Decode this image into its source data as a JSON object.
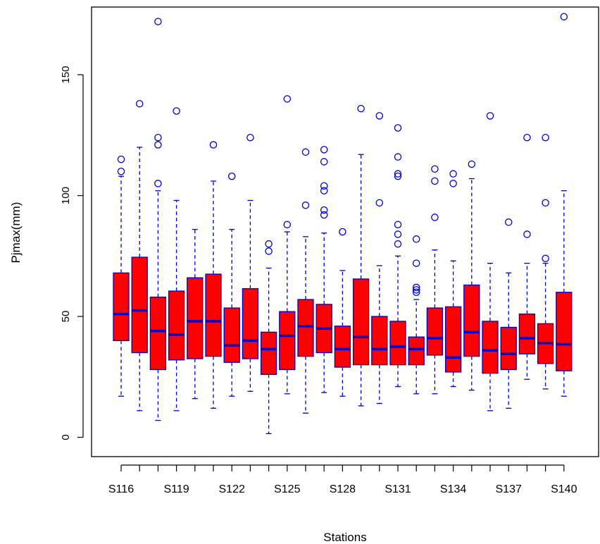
{
  "chart_data": {
    "type": "boxplot",
    "title": "",
    "xlabel": "Stations",
    "ylabel": "Pjmax(mm)",
    "ylim": [
      -8,
      178
    ],
    "yticks": [
      0,
      50,
      100,
      150
    ],
    "xtick_labels_shown": [
      "S116",
      "S119",
      "S122",
      "S125",
      "S128",
      "S131",
      "S134",
      "S137",
      "S140"
    ],
    "colors": {
      "box_fill": "#ff0000",
      "border": "#0000cc",
      "axis": "#000000"
    },
    "categories": [
      "S116",
      "S117",
      "S118",
      "S119",
      "S120",
      "S121",
      "S122",
      "S123",
      "S124",
      "S125",
      "S126",
      "S127",
      "S128",
      "S129",
      "S130",
      "S131",
      "S132",
      "S133",
      "S134",
      "S135",
      "S136",
      "S137",
      "S138",
      "S139",
      "S140"
    ],
    "boxes": [
      {
        "station": "S116",
        "whisker_low": 17,
        "q1": 40,
        "median": 51,
        "q3": 68,
        "whisker_high": 108,
        "outliers": [
          110,
          115
        ]
      },
      {
        "station": "S117",
        "whisker_low": 11,
        "q1": 35,
        "median": 52.5,
        "q3": 74.5,
        "whisker_high": 120,
        "outliers": [
          138
        ]
      },
      {
        "station": "S118",
        "whisker_low": 7,
        "q1": 28,
        "median": 44,
        "q3": 58,
        "whisker_high": 102,
        "outliers": [
          105,
          121,
          124,
          172
        ]
      },
      {
        "station": "S119",
        "whisker_low": 11,
        "q1": 32,
        "median": 42.5,
        "q3": 60.5,
        "whisker_high": 98,
        "outliers": [
          135
        ]
      },
      {
        "station": "S120",
        "whisker_low": 16,
        "q1": 32.5,
        "median": 48,
        "q3": 66,
        "whisker_high": 86,
        "outliers": []
      },
      {
        "station": "S121",
        "whisker_low": 12,
        "q1": 33.5,
        "median": 48,
        "q3": 67.5,
        "whisker_high": 106,
        "outliers": [
          121
        ]
      },
      {
        "station": "S122",
        "whisker_low": 17,
        "q1": 31,
        "median": 38,
        "q3": 53.5,
        "whisker_high": 86,
        "outliers": [
          108
        ]
      },
      {
        "station": "S123",
        "whisker_low": 19,
        "q1": 32.5,
        "median": 40,
        "q3": 61.5,
        "whisker_high": 98,
        "outliers": [
          124
        ]
      },
      {
        "station": "S124",
        "whisker_low": 1.5,
        "q1": 26,
        "median": 36.5,
        "q3": 43.5,
        "whisker_high": 70,
        "outliers": [
          77,
          80
        ]
      },
      {
        "station": "S125",
        "whisker_low": 18,
        "q1": 28,
        "median": 42,
        "q3": 52,
        "whisker_high": 85,
        "outliers": [
          88,
          140
        ]
      },
      {
        "station": "S126",
        "whisker_low": 10,
        "q1": 33.5,
        "median": 46,
        "q3": 57,
        "whisker_high": 83,
        "outliers": [
          96,
          118
        ]
      },
      {
        "station": "S127",
        "whisker_low": 18.5,
        "q1": 35,
        "median": 45,
        "q3": 55,
        "whisker_high": 84.5,
        "outliers": [
          92,
          94,
          102,
          104,
          114,
          119
        ]
      },
      {
        "station": "S128",
        "whisker_low": 17,
        "q1": 29,
        "median": 36.5,
        "q3": 46,
        "whisker_high": 69,
        "outliers": [
          85
        ]
      },
      {
        "station": "S129",
        "whisker_low": 13,
        "q1": 30,
        "median": 41.5,
        "q3": 65.5,
        "whisker_high": 117,
        "outliers": [
          136
        ]
      },
      {
        "station": "S130",
        "whisker_low": 14,
        "q1": 30,
        "median": 36.5,
        "q3": 50,
        "whisker_high": 71,
        "outliers": [
          97,
          133
        ]
      },
      {
        "station": "S131",
        "whisker_low": 21,
        "q1": 30,
        "median": 37.5,
        "q3": 48,
        "whisker_high": 75,
        "outliers": [
          80,
          84,
          88,
          108,
          109,
          116,
          128
        ]
      },
      {
        "station": "S132",
        "whisker_low": 18,
        "q1": 30,
        "median": 36.5,
        "q3": 41.5,
        "whisker_high": 57,
        "outliers": [
          60,
          61,
          62,
          72,
          82
        ]
      },
      {
        "station": "S133",
        "whisker_low": 18,
        "q1": 34,
        "median": 41,
        "q3": 53.5,
        "whisker_high": 77.5,
        "outliers": [
          91,
          106,
          111
        ]
      },
      {
        "station": "S134",
        "whisker_low": 21,
        "q1": 27,
        "median": 33,
        "q3": 54,
        "whisker_high": 73,
        "outliers": [
          105,
          109
        ]
      },
      {
        "station": "S135",
        "whisker_low": 19.5,
        "q1": 33.5,
        "median": 43.5,
        "q3": 63,
        "whisker_high": 107,
        "outliers": [
          113
        ]
      },
      {
        "station": "S136",
        "whisker_low": 11,
        "q1": 26.5,
        "median": 36,
        "q3": 48,
        "whisker_high": 72,
        "outliers": [
          133
        ]
      },
      {
        "station": "S137",
        "whisker_low": 12,
        "q1": 28,
        "median": 34.5,
        "q3": 45.5,
        "whisker_high": 68,
        "outliers": [
          89
        ]
      },
      {
        "station": "S138",
        "whisker_low": 24,
        "q1": 34.5,
        "median": 41,
        "q3": 51,
        "whisker_high": 72,
        "outliers": [
          84,
          124
        ]
      },
      {
        "station": "S139",
        "whisker_low": 20,
        "q1": 30.5,
        "median": 39,
        "q3": 47,
        "whisker_high": 72,
        "outliers": [
          74,
          97,
          124
        ]
      },
      {
        "station": "S140",
        "whisker_low": 17,
        "q1": 27.5,
        "median": 38.5,
        "q3": 60,
        "whisker_high": 102,
        "outliers": [
          174
        ]
      }
    ]
  }
}
